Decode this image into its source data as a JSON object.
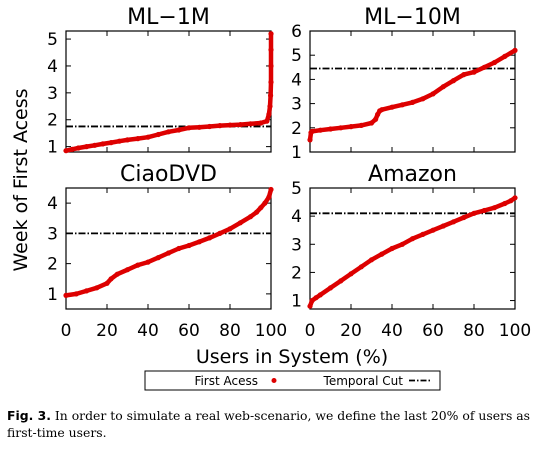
{
  "figure": {
    "shared_xlabel": "Users in System (%)",
    "shared_ylabel": "Week of First Acess",
    "legend": {
      "first_access": "First Acess",
      "temporal_cut": "Temporal Cut"
    }
  },
  "caption": {
    "label": "Fig. 3.",
    "text": "In order to simulate a real web-scenario, we define the last 20% of users as first-time users."
  },
  "colors": {
    "first_access": "#dd0000",
    "temporal_cut": "#000000"
  },
  "chart_data": [
    {
      "type": "scatter",
      "title": "ML−1M",
      "xlim": [
        0,
        100
      ],
      "ylim": [
        0.8,
        5.3
      ],
      "yticks": [
        1,
        2,
        3,
        4,
        5
      ],
      "xticks": [],
      "temporal_cut": 1.75,
      "series": [
        {
          "name": "First Acess",
          "x": [
            0,
            3,
            6,
            10,
            14,
            18,
            22,
            26,
            30,
            35,
            40,
            45,
            50,
            55,
            60,
            65,
            70,
            75,
            80,
            85,
            90,
            95,
            98,
            99,
            99.5,
            99.8,
            100,
            100,
            100,
            100
          ],
          "y": [
            0.85,
            0.9,
            0.95,
            1.0,
            1.05,
            1.1,
            1.15,
            1.2,
            1.25,
            1.3,
            1.35,
            1.45,
            1.55,
            1.62,
            1.7,
            1.72,
            1.75,
            1.78,
            1.8,
            1.82,
            1.85,
            1.88,
            1.95,
            2.2,
            2.5,
            2.9,
            3.4,
            4.0,
            4.6,
            5.2
          ]
        }
      ]
    },
    {
      "type": "scatter",
      "title": "ML−10M",
      "xlim": [
        0,
        100
      ],
      "ylim": [
        1,
        6
      ],
      "yticks": [
        1,
        2,
        3,
        4,
        5,
        6
      ],
      "xticks": [],
      "temporal_cut": 4.45,
      "series": [
        {
          "name": "First Acess",
          "x": [
            0,
            0.5,
            1,
            5,
            10,
            15,
            20,
            25,
            30,
            32,
            33,
            34,
            35,
            40,
            45,
            50,
            55,
            60,
            65,
            70,
            75,
            80,
            85,
            90,
            95,
            100
          ],
          "y": [
            1.5,
            1.8,
            1.85,
            1.9,
            1.95,
            2.0,
            2.05,
            2.1,
            2.2,
            2.35,
            2.55,
            2.7,
            2.75,
            2.85,
            2.95,
            3.05,
            3.2,
            3.4,
            3.7,
            3.95,
            4.2,
            4.3,
            4.5,
            4.7,
            4.95,
            5.2
          ]
        }
      ]
    },
    {
      "type": "scatter",
      "title": "CiaoDVD",
      "xlim": [
        0,
        100
      ],
      "ylim": [
        0.5,
        4.5
      ],
      "yticks": [
        1,
        2,
        3,
        4
      ],
      "xticks": [
        0,
        20,
        40,
        60,
        80,
        100
      ],
      "temporal_cut": 3.0,
      "series": [
        {
          "name": "First Acess",
          "x": [
            0,
            5,
            10,
            15,
            20,
            22,
            25,
            30,
            35,
            40,
            45,
            50,
            55,
            60,
            65,
            70,
            75,
            80,
            85,
            90,
            93,
            95,
            97,
            99,
            100
          ],
          "y": [
            0.95,
            1.0,
            1.1,
            1.2,
            1.35,
            1.5,
            1.65,
            1.8,
            1.95,
            2.05,
            2.2,
            2.35,
            2.5,
            2.6,
            2.72,
            2.85,
            3.0,
            3.15,
            3.35,
            3.55,
            3.7,
            3.85,
            4.0,
            4.2,
            4.45
          ]
        }
      ]
    },
    {
      "type": "scatter",
      "title": "Amazon",
      "xlim": [
        0,
        100
      ],
      "ylim": [
        0.7,
        5
      ],
      "yticks": [
        1,
        2,
        3,
        4,
        5
      ],
      "xticks": [
        0,
        20,
        40,
        60,
        80,
        100
      ],
      "temporal_cut": 4.1,
      "series": [
        {
          "name": "First Acess",
          "x": [
            0,
            1,
            3,
            5,
            10,
            15,
            20,
            25,
            30,
            35,
            40,
            45,
            50,
            55,
            60,
            65,
            70,
            75,
            80,
            85,
            90,
            95,
            98,
            100
          ],
          "y": [
            0.8,
            1.0,
            1.1,
            1.2,
            1.45,
            1.7,
            1.95,
            2.2,
            2.45,
            2.65,
            2.85,
            3.0,
            3.2,
            3.35,
            3.5,
            3.65,
            3.8,
            3.95,
            4.1,
            4.2,
            4.3,
            4.45,
            4.55,
            4.65
          ]
        }
      ]
    }
  ]
}
